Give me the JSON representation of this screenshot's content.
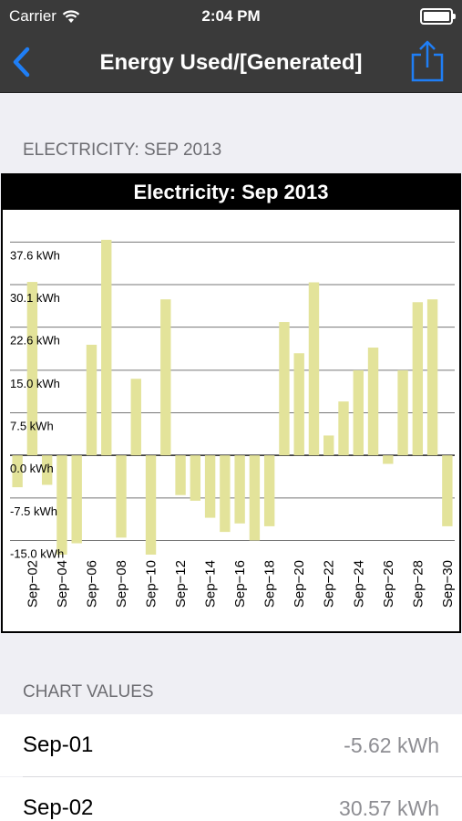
{
  "status_bar": {
    "carrier": "Carrier",
    "time": "2:04 PM",
    "battery_level": 1.0
  },
  "nav": {
    "title": "Energy Used/[Generated]"
  },
  "sections": {
    "chart_header": "ELECTRICITY: SEP 2013",
    "values_header": "CHART VALUES"
  },
  "chart_data": {
    "type": "bar",
    "title": "Electricity: Sep 2013",
    "unit": "kWh",
    "ylim": [
      -17.5,
      42
    ],
    "y_ticks": [
      -15.0,
      -7.5,
      0.0,
      7.5,
      15.0,
      22.6,
      30.1,
      37.6
    ],
    "y_tick_labels": [
      "-15.0 kWh",
      "-7.5 kWh",
      "0.0 kWh",
      "7.5 kWh",
      "15.0 kWh",
      "22.6 kWh",
      "30.1 kWh",
      "37.6 kWh"
    ],
    "grid": true,
    "bar_color": "#e3e39a",
    "categories": [
      "Sep-01",
      "Sep-02",
      "Sep-03",
      "Sep-04",
      "Sep-05",
      "Sep-06",
      "Sep-07",
      "Sep-08",
      "Sep-09",
      "Sep-10",
      "Sep-11",
      "Sep-12",
      "Sep-13",
      "Sep-14",
      "Sep-15",
      "Sep-16",
      "Sep-17",
      "Sep-18",
      "Sep-19",
      "Sep-20",
      "Sep-21",
      "Sep-22",
      "Sep-23",
      "Sep-24",
      "Sep-25",
      "Sep-26",
      "Sep-27",
      "Sep-28",
      "Sep-29",
      "Sep-30"
    ],
    "x_tick_labels": [
      "Sep−02",
      "Sep−04",
      "Sep−06",
      "Sep−08",
      "Sep−10",
      "Sep−12",
      "Sep−14",
      "Sep−16",
      "Sep−18",
      "Sep−20",
      "Sep−22",
      "Sep−24",
      "Sep−26",
      "Sep−28",
      "Sep−30"
    ],
    "values": [
      -5.62,
      30.57,
      -5.2,
      -17.5,
      -15.5,
      19.5,
      38.0,
      -14.5,
      13.5,
      -17.5,
      27.5,
      -7.0,
      -8.0,
      -11.0,
      -13.5,
      -12.0,
      -15.0,
      -12.5,
      23.5,
      18.0,
      30.5,
      3.5,
      9.5,
      15.0,
      19.0,
      -1.5,
      15.0,
      27.0,
      27.5,
      -12.5
    ]
  },
  "chart_values": [
    {
      "date": "Sep-01",
      "value": "-5.62 kWh"
    },
    {
      "date": "Sep-02",
      "value": "30.57 kWh"
    }
  ]
}
